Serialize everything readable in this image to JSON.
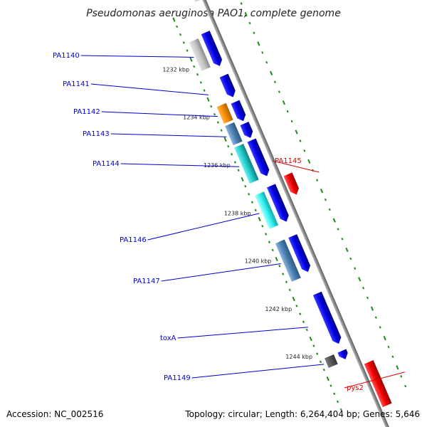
{
  "title": "Pseudomonas aeruginosa PAO1, complete genome",
  "footer": {
    "accession": "Accession: NC_002516",
    "topology": "Topology: circular; Length: 6,264,404 bp; Genes: 5,646"
  },
  "colors": {
    "forward_strand": "#0000dd",
    "label_blue": "#0000cc",
    "label_red": "#dd0000",
    "backbone": "#888888",
    "ticks": "#1a8a1a"
  },
  "kbp_ticks": [
    "1232 kbp",
    "1234 kbp",
    "1236 kbp",
    "1238 kbp",
    "1240 kbp",
    "1242 kbp",
    "1244 kbp"
  ],
  "labels": [
    {
      "text": "PA1140",
      "color": "blue"
    },
    {
      "text": "PA1141",
      "color": "blue"
    },
    {
      "text": "PA1142",
      "color": "blue"
    },
    {
      "text": "PA1143",
      "color": "blue"
    },
    {
      "text": "PA1144",
      "color": "blue"
    },
    {
      "text": "PA1145",
      "color": "red"
    },
    {
      "text": "PA1146",
      "color": "blue"
    },
    {
      "text": "PA1147",
      "color": "blue"
    },
    {
      "text": "toxA",
      "color": "blue"
    },
    {
      "text": "PA1149",
      "color": "blue"
    },
    {
      "text": "pys2",
      "color": "red"
    }
  ]
}
